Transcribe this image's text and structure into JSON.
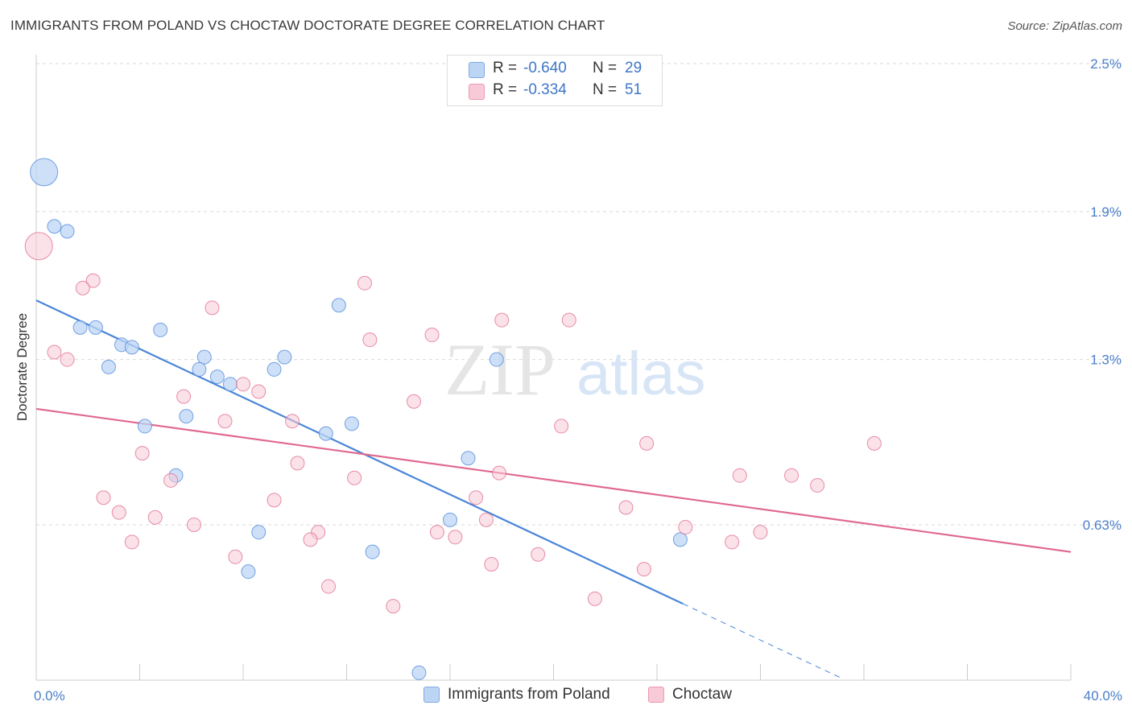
{
  "header": {
    "title": "IMMIGRANTS FROM POLAND VS CHOCTAW DOCTORATE DEGREE CORRELATION CHART",
    "source": "Source: ZipAtlas.com"
  },
  "watermark": {
    "part1": "ZIP",
    "part2": "atlas"
  },
  "legend": {
    "rows": [
      {
        "r_label": "R =",
        "r_value": "-0.640",
        "n_label": "N =",
        "n_value": "29",
        "color": "#a9c8f0"
      },
      {
        "r_label": "R =",
        "r_value": "-0.334",
        "n_label": "N =",
        "n_value": "51",
        "color": "#f5b6c8"
      }
    ]
  },
  "bottom_legend": [
    {
      "label": "Immigrants from Poland",
      "color": "#a9c8f0"
    },
    {
      "label": "Choctaw",
      "color": "#f5b6c8"
    }
  ],
  "chart_data": {
    "type": "scatter",
    "title": "IMMIGRANTS FROM POLAND VS CHOCTAW DOCTORATE DEGREE CORRELATION CHART",
    "xlabel": "",
    "ylabel": "Doctorate Degree",
    "xlim": [
      0,
      40
    ],
    "ylim": [
      0,
      2.5
    ],
    "x_tick_labels": [
      {
        "value": 0,
        "label": "0.0%"
      },
      {
        "value": 40,
        "label": "40.0%"
      }
    ],
    "y_tick_labels": [
      {
        "value": 0.63,
        "label": "0.63%"
      },
      {
        "value": 1.3,
        "label": "1.3%"
      },
      {
        "value": 1.9,
        "label": "1.9%"
      },
      {
        "value": 2.5,
        "label": "2.5%"
      }
    ],
    "grid": "horizontal dashed",
    "legend_placement": "top-center",
    "series": [
      {
        "name": "Immigrants from Poland",
        "color": "#4a86d8",
        "fill": "#bdd5f5",
        "points": [
          {
            "x": 0.3,
            "y": 2.06,
            "big": true
          },
          {
            "x": 0.7,
            "y": 1.84
          },
          {
            "x": 1.2,
            "y": 1.82
          },
          {
            "x": 1.7,
            "y": 1.43
          },
          {
            "x": 2.3,
            "y": 1.43
          },
          {
            "x": 3.3,
            "y": 1.36
          },
          {
            "x": 3.7,
            "y": 1.35
          },
          {
            "x": 4.8,
            "y": 1.42
          },
          {
            "x": 2.8,
            "y": 1.27
          },
          {
            "x": 6.5,
            "y": 1.31
          },
          {
            "x": 6.3,
            "y": 1.26
          },
          {
            "x": 7.5,
            "y": 1.2
          },
          {
            "x": 7.0,
            "y": 1.23
          },
          {
            "x": 4.2,
            "y": 1.03
          },
          {
            "x": 5.8,
            "y": 1.07
          },
          {
            "x": 9.6,
            "y": 1.31
          },
          {
            "x": 9.2,
            "y": 1.26
          },
          {
            "x": 11.7,
            "y": 1.52
          },
          {
            "x": 12.2,
            "y": 1.04
          },
          {
            "x": 11.2,
            "y": 1.0
          },
          {
            "x": 5.4,
            "y": 0.83
          },
          {
            "x": 8.6,
            "y": 0.6
          },
          {
            "x": 8.2,
            "y": 0.44
          },
          {
            "x": 13.0,
            "y": 0.52
          },
          {
            "x": 17.8,
            "y": 1.3
          },
          {
            "x": 16.7,
            "y": 0.9
          },
          {
            "x": 16.0,
            "y": 0.65
          },
          {
            "x": 24.9,
            "y": 0.57
          },
          {
            "x": 14.8,
            "y": 0.03
          }
        ],
        "trend": {
          "x0": 0,
          "y0": 1.54,
          "x1": 25.0,
          "y1": 0.31,
          "dash_to_x": 31.2
        }
      },
      {
        "name": "Choctaw",
        "color": "#e0698f",
        "fill": "#f8c9d6",
        "points": [
          {
            "x": 0.1,
            "y": 1.76,
            "big": true
          },
          {
            "x": 2.2,
            "y": 1.62
          },
          {
            "x": 1.8,
            "y": 1.59
          },
          {
            "x": 0.7,
            "y": 1.33
          },
          {
            "x": 1.2,
            "y": 1.3
          },
          {
            "x": 6.8,
            "y": 1.51
          },
          {
            "x": 12.7,
            "y": 1.61
          },
          {
            "x": 12.9,
            "y": 1.38
          },
          {
            "x": 15.3,
            "y": 1.4
          },
          {
            "x": 18.0,
            "y": 1.46
          },
          {
            "x": 20.6,
            "y": 1.46
          },
          {
            "x": 5.7,
            "y": 1.15
          },
          {
            "x": 7.3,
            "y": 1.05
          },
          {
            "x": 8.0,
            "y": 1.2
          },
          {
            "x": 8.6,
            "y": 1.17
          },
          {
            "x": 9.9,
            "y": 1.05
          },
          {
            "x": 14.6,
            "y": 1.13
          },
          {
            "x": 20.3,
            "y": 1.03
          },
          {
            "x": 4.1,
            "y": 0.92
          },
          {
            "x": 10.1,
            "y": 0.88
          },
          {
            "x": 2.6,
            "y": 0.74
          },
          {
            "x": 3.2,
            "y": 0.68
          },
          {
            "x": 3.7,
            "y": 0.56
          },
          {
            "x": 4.6,
            "y": 0.66
          },
          {
            "x": 5.2,
            "y": 0.81
          },
          {
            "x": 6.1,
            "y": 0.63
          },
          {
            "x": 9.2,
            "y": 0.73
          },
          {
            "x": 12.3,
            "y": 0.82
          },
          {
            "x": 10.9,
            "y": 0.6
          },
          {
            "x": 10.6,
            "y": 0.57
          },
          {
            "x": 7.7,
            "y": 0.5
          },
          {
            "x": 11.3,
            "y": 0.38
          },
          {
            "x": 13.8,
            "y": 0.3
          },
          {
            "x": 15.5,
            "y": 0.6
          },
          {
            "x": 16.2,
            "y": 0.58
          },
          {
            "x": 17.0,
            "y": 0.74
          },
          {
            "x": 17.4,
            "y": 0.65
          },
          {
            "x": 17.9,
            "y": 0.84
          },
          {
            "x": 17.6,
            "y": 0.47
          },
          {
            "x": 19.4,
            "y": 0.51
          },
          {
            "x": 21.6,
            "y": 0.33
          },
          {
            "x": 22.8,
            "y": 0.7
          },
          {
            "x": 23.5,
            "y": 0.45
          },
          {
            "x": 23.6,
            "y": 0.96
          },
          {
            "x": 25.1,
            "y": 0.62
          },
          {
            "x": 26.9,
            "y": 0.56
          },
          {
            "x": 27.2,
            "y": 0.83
          },
          {
            "x": 28.0,
            "y": 0.6
          },
          {
            "x": 29.2,
            "y": 0.83
          },
          {
            "x": 30.2,
            "y": 0.79
          },
          {
            "x": 32.4,
            "y": 0.96
          }
        ],
        "trend": {
          "x0": 0,
          "y0": 1.1,
          "x1": 40.0,
          "y1": 0.52
        }
      }
    ]
  }
}
